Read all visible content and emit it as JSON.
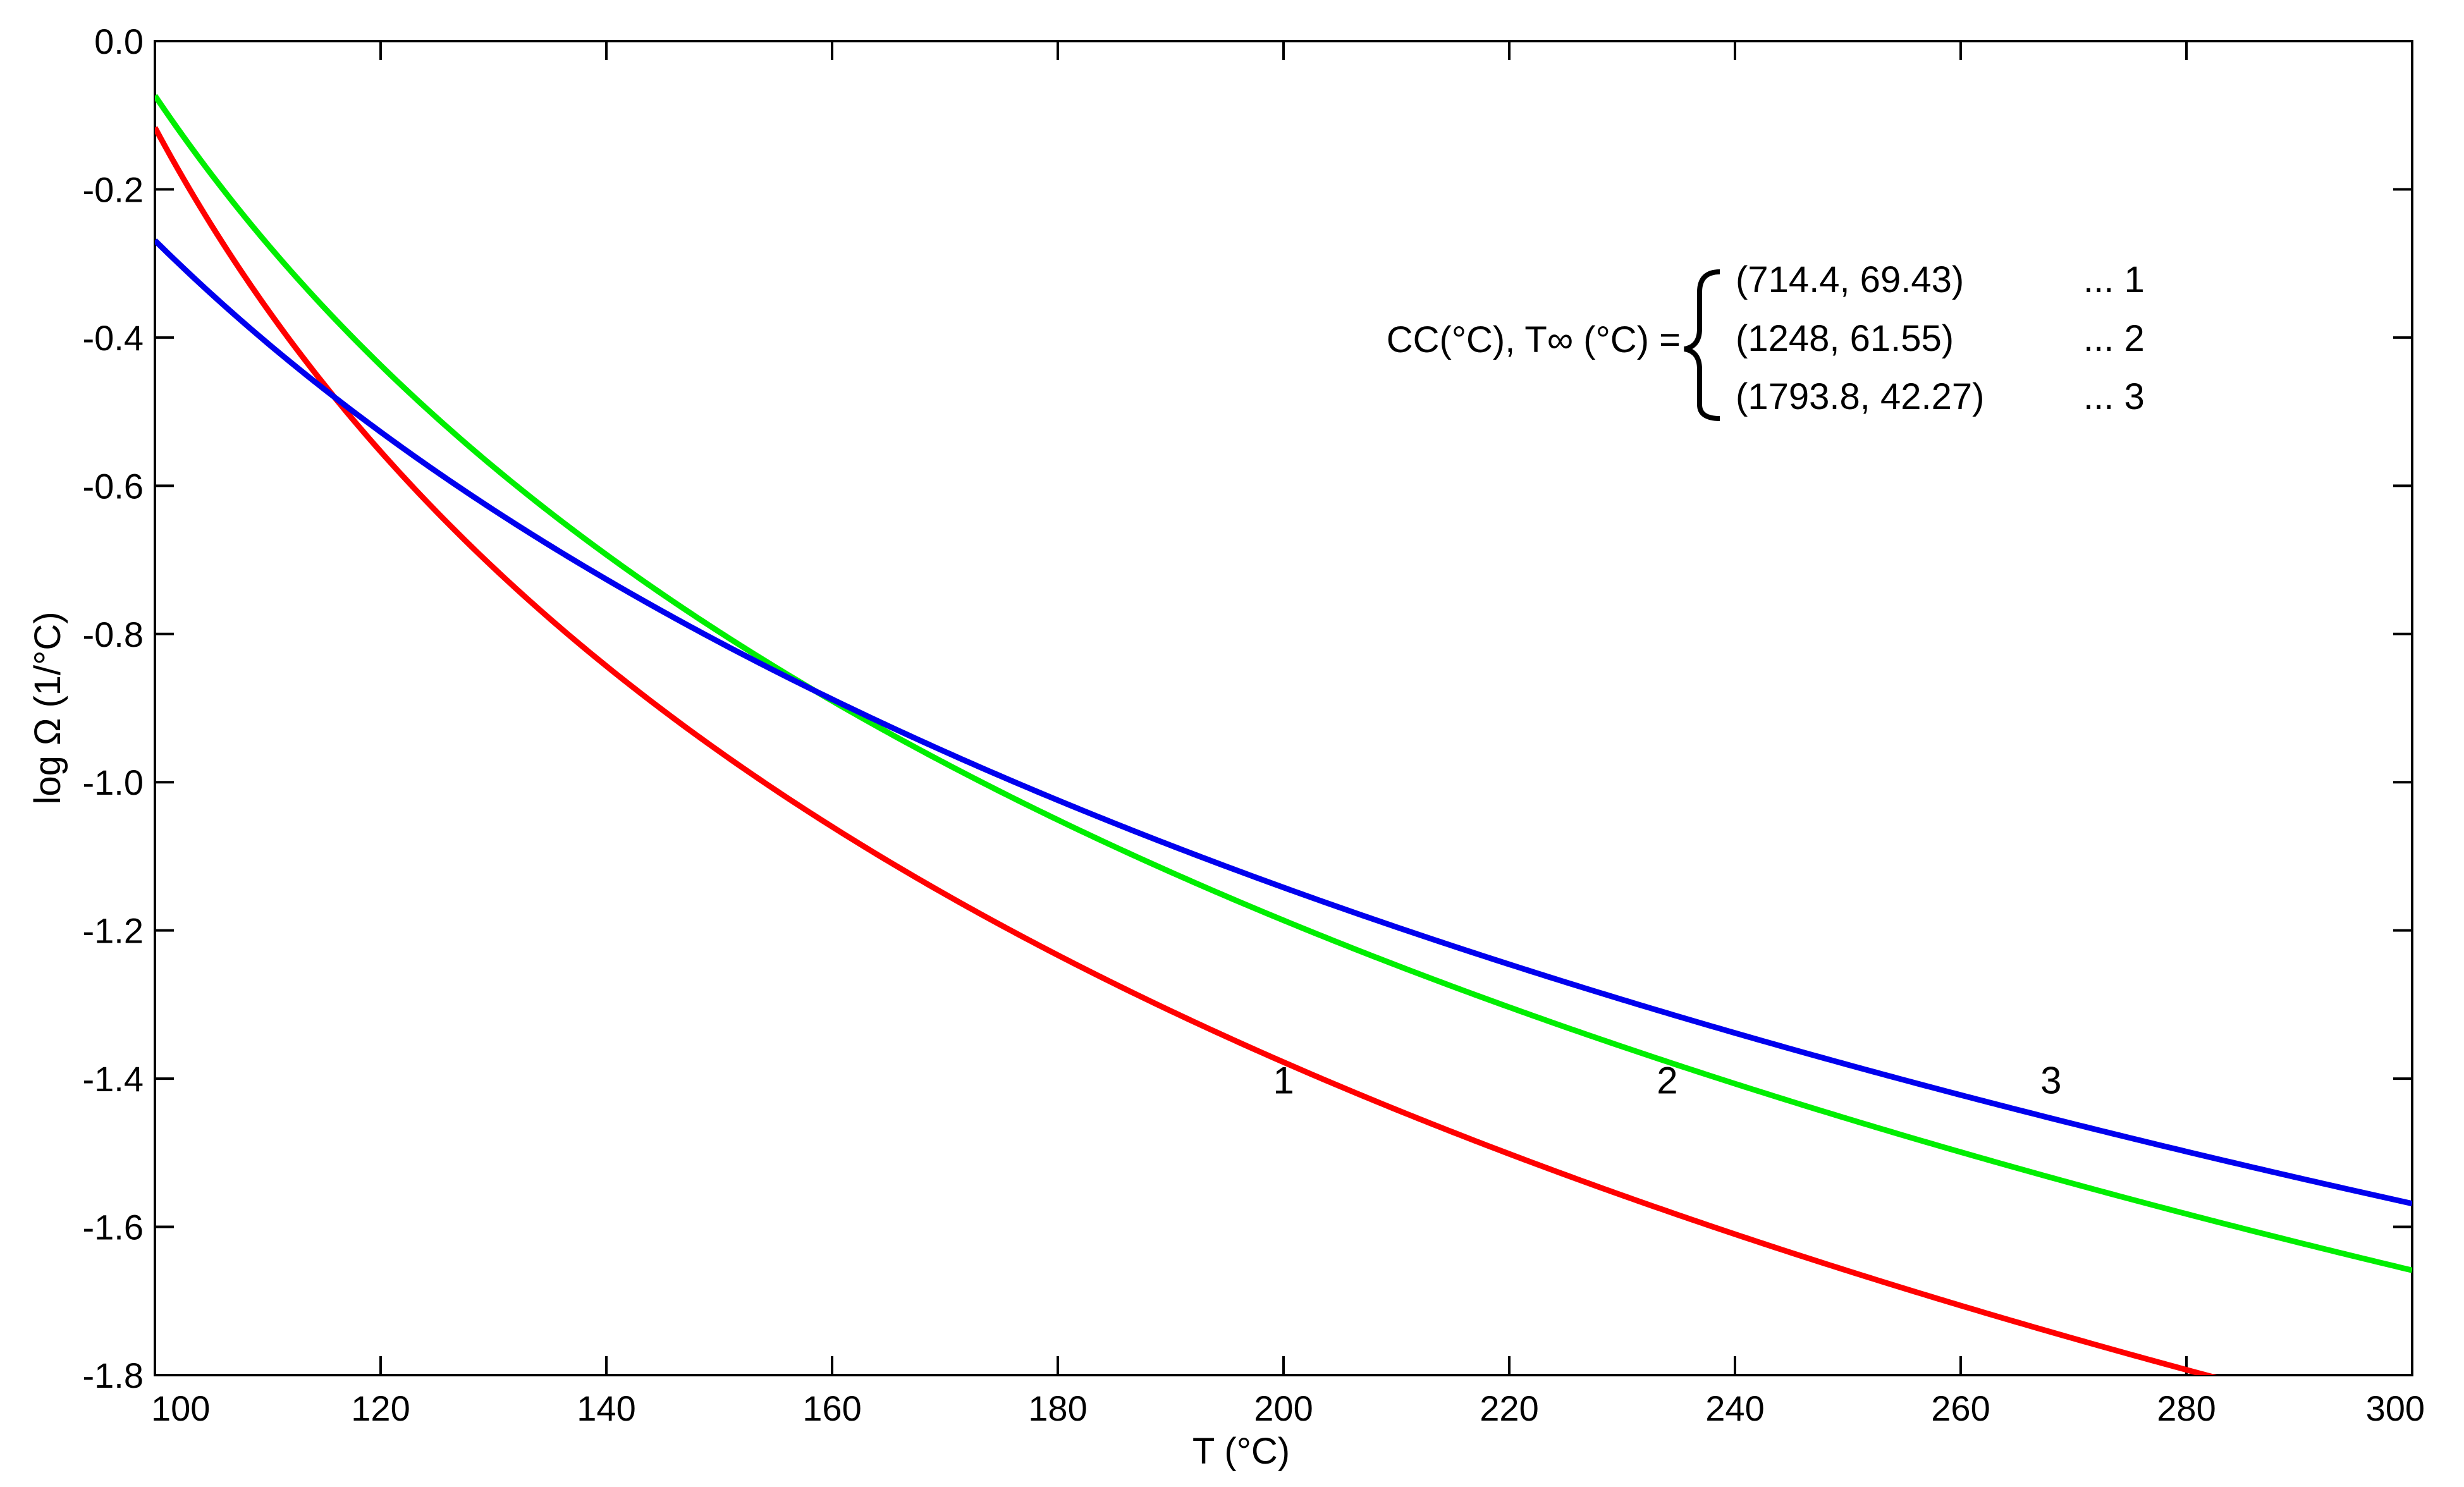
{
  "chart_data": {
    "type": "line",
    "title": "",
    "xlabel": "T (°C)",
    "ylabel": "log Ω (1/°C)",
    "xlim": [
      100,
      300
    ],
    "ylim": [
      -1.8,
      0.0
    ],
    "grid": false,
    "x_ticks": [
      "100",
      "120",
      "140",
      "160",
      "180",
      "200",
      "220",
      "240",
      "260",
      "280",
      "300"
    ],
    "y_ticks": [
      "0.0",
      "-0.2",
      "-0.4",
      "-0.6",
      "-0.8",
      "-1.0",
      "-1.2",
      "-1.4",
      "-1.6",
      "-1.8"
    ],
    "legend": {
      "prefix": "CC(°C), T∞ (°C) =",
      "entries": [
        {
          "params": "(714.4, 69.43)",
          "tag": "... 1"
        },
        {
          "params": "(1248, 61.55)",
          "tag": "... 2"
        },
        {
          "params": "(1793.8, 42.27)",
          "tag": "... 3"
        }
      ]
    },
    "series": [
      {
        "label": "1",
        "color": "#ff0000",
        "CC": 714.4,
        "Tinf": 69.43,
        "label_at": [
          200,
          -1.42
        ]
      },
      {
        "label": "2",
        "color": "#00ee00",
        "CC": 1248,
        "Tinf": 61.55,
        "label_at": [
          234,
          -1.42
        ]
      },
      {
        "label": "3",
        "color": "#0000ee",
        "CC": 1793.8,
        "Tinf": 42.27,
        "label_at": [
          268,
          -1.42
        ]
      }
    ]
  }
}
